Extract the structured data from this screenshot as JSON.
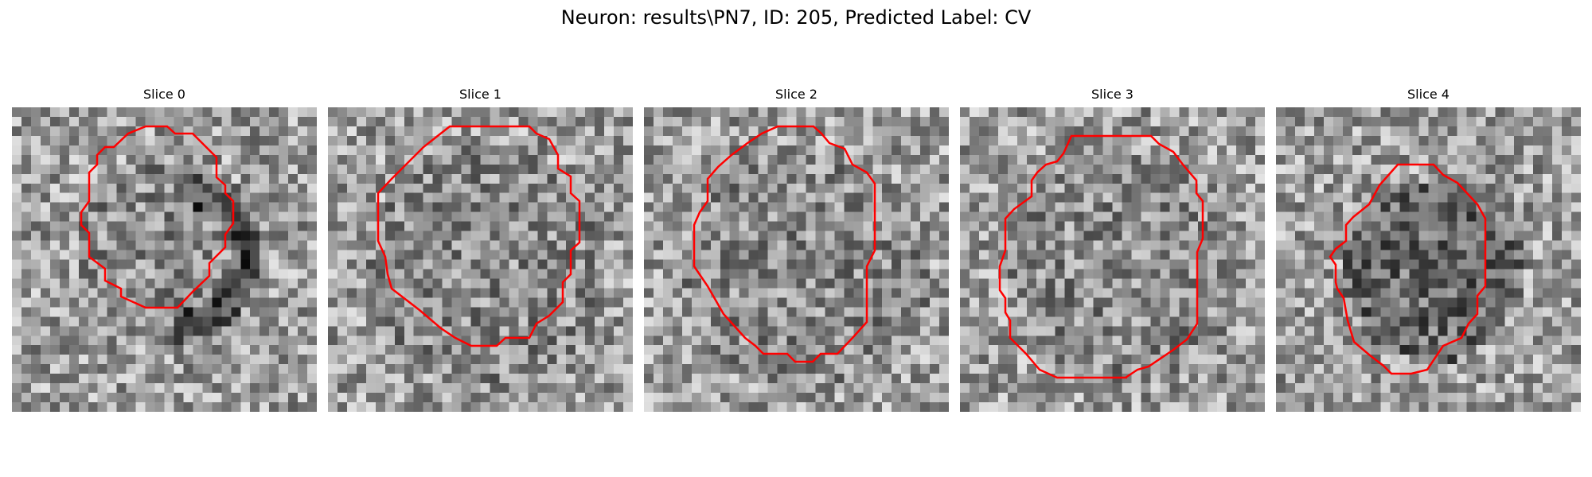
{
  "figure": {
    "title": "Neuron: results\\PN7, ID: 205, Predicted Label: CV"
  },
  "colors": {
    "contour": "#ff0000",
    "background": "#ffffff"
  },
  "panels": [
    {
      "title": "Slice 0",
      "seed": 11,
      "center": [
        0.52,
        0.48
      ],
      "radius": 0.32,
      "dark_ring": true
    },
    {
      "title": "Slice 1",
      "seed": 23,
      "center": [
        0.5,
        0.52
      ],
      "radius": 0.4,
      "dark_ring": false
    },
    {
      "title": "Slice 2",
      "seed": 37,
      "center": [
        0.52,
        0.53
      ],
      "radius": 0.4,
      "dark_ring": false
    },
    {
      "title": "Slice 3",
      "seed": 41,
      "center": [
        0.52,
        0.53
      ],
      "radius": 0.38,
      "dark_ring": false
    },
    {
      "title": "Slice 4",
      "seed": 53,
      "center": [
        0.5,
        0.52
      ],
      "radius": 0.3,
      "dark_ring": false
    }
  ]
}
